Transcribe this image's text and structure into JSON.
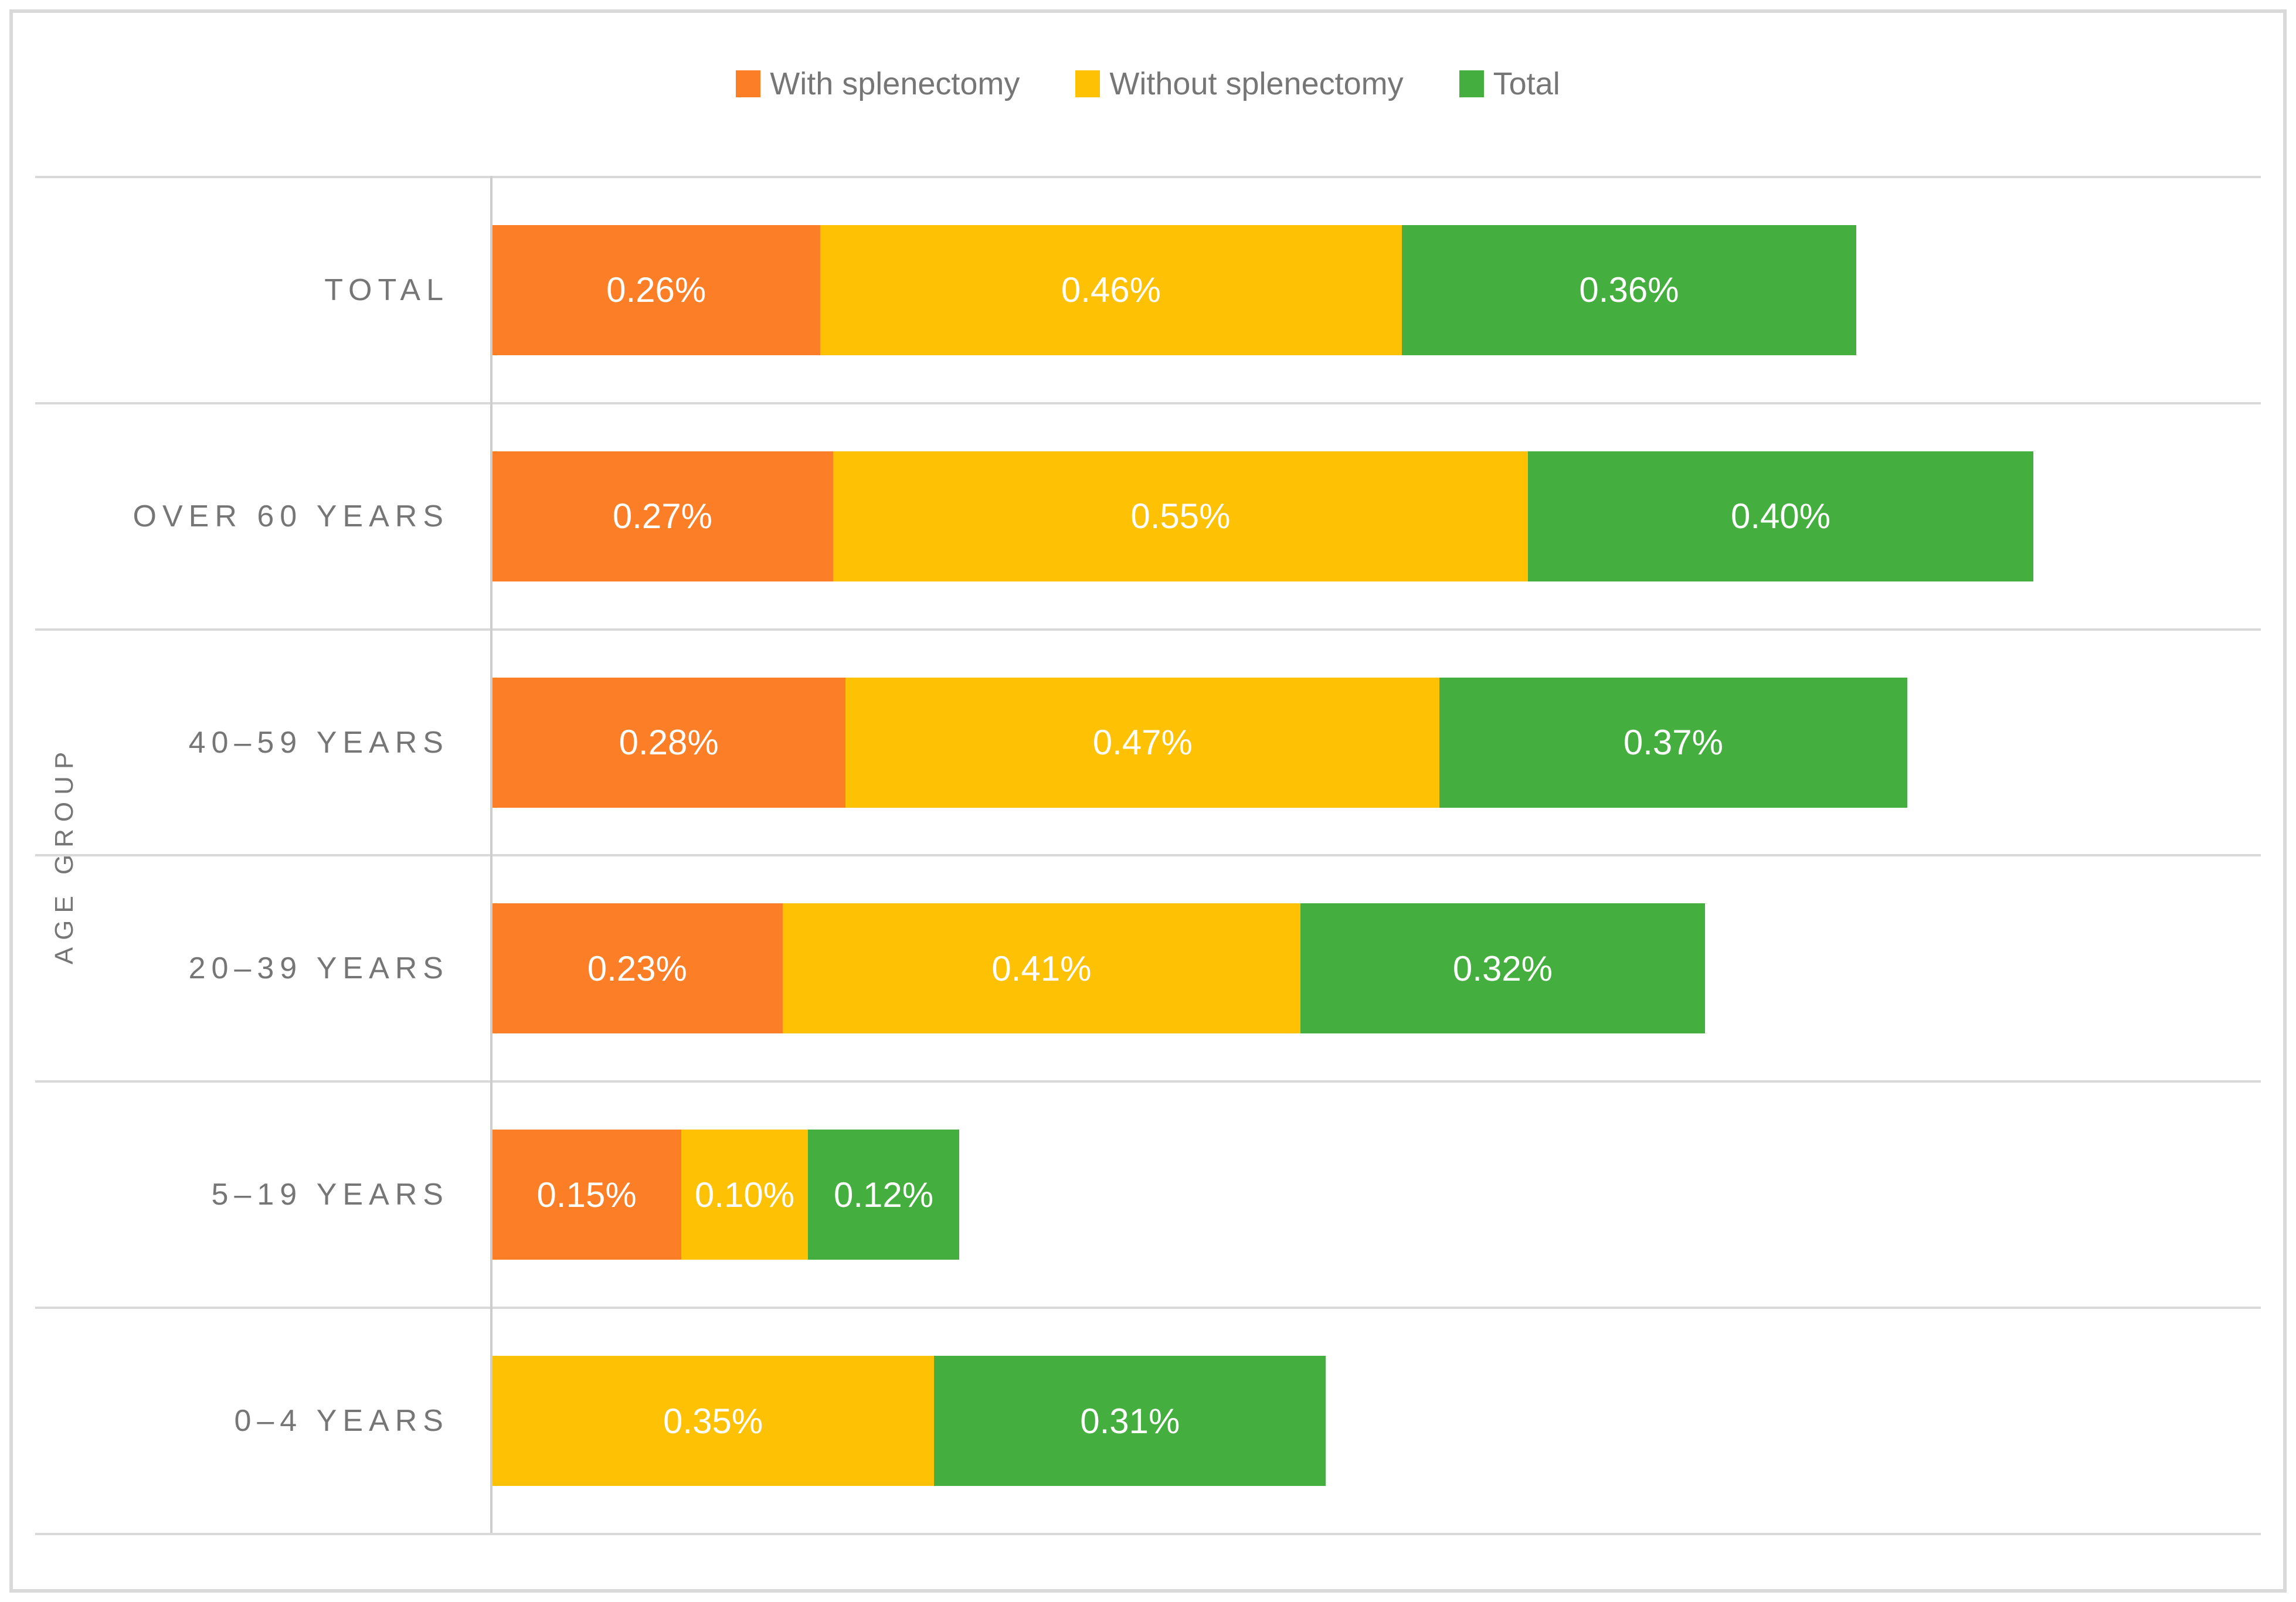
{
  "chart_data": {
    "type": "bar",
    "orientation": "horizontal",
    "grouping": "stacked-look",
    "title": "",
    "xlabel": "",
    "ylabel": "AGE GROUP",
    "xlim": [
      0,
      1.4
    ],
    "grid": true,
    "legend_position": "top-center",
    "value_label_format": "0.00%",
    "categories": [
      "TOTAL",
      "OVER 60 YEARS",
      "40–59 YEARS",
      "20–39 YEARS",
      "5–19 YEARS",
      "0–4 YEARS"
    ],
    "series": [
      {
        "name": "With splenectomy",
        "color": "#FC7E27",
        "values": [
          0.26,
          0.27,
          0.28,
          0.23,
          0.15,
          null
        ]
      },
      {
        "name": "Without splenectomy",
        "color": "#FFC103",
        "values": [
          0.46,
          0.55,
          0.47,
          0.41,
          0.1,
          0.35
        ]
      },
      {
        "name": "Total",
        "color": "#44AE3E",
        "values": [
          0.36,
          0.4,
          0.37,
          0.32,
          0.12,
          0.31
        ]
      }
    ]
  },
  "style": {
    "background": "#FFFFFF",
    "border_color": "#D9D9D9",
    "grid_color": "#D9D9D9",
    "axis_color": "#CDCDCD",
    "text_color": "#767676",
    "value_text_color": "#FFFFFF"
  }
}
